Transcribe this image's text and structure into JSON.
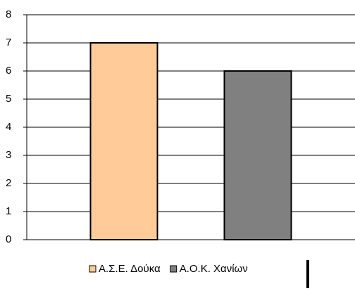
{
  "chart_data": {
    "type": "bar",
    "categories": [
      null
    ],
    "series": [
      {
        "name": "Α.Σ.Ε. Δούκα",
        "color": "#ffcc99",
        "values": [
          7
        ]
      },
      {
        "name": "Α.Ο.Κ. Χανίων",
        "color": "#808080",
        "values": [
          6
        ]
      }
    ],
    "ylim": [
      0,
      8
    ],
    "yticks": [
      0,
      1,
      2,
      3,
      4,
      5,
      6,
      7,
      8
    ],
    "grid": true,
    "legend": "bottom"
  }
}
